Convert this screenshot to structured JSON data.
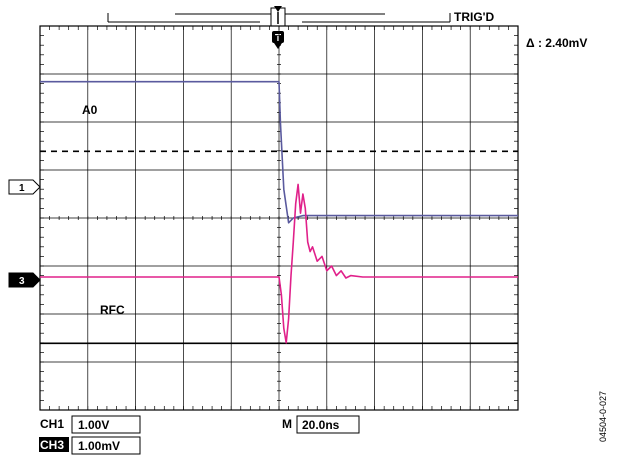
{
  "header": {
    "trigger_status": "TRIG'D",
    "trigger_marker": "T",
    "delta_label": "Δ : 2.40mV"
  },
  "channels": {
    "ch1_marker": "1",
    "ch3_marker": "3",
    "ch1_trace_label": "A0",
    "ch3_trace_label": "RFC",
    "ch1_label": "CH1",
    "ch1_scale": "1.00V",
    "ch3_label": "CH3",
    "ch3_scale": "1.00mV",
    "timebase_label": "M",
    "timebase_value": "20.0ns"
  },
  "colors": {
    "ch1_trace": "#5a5a9e",
    "ch3_trace": "#e0208a",
    "grid": "#000000",
    "background": "#ffffff"
  },
  "figure_id": "04504-0-027",
  "chart_data": {
    "type": "line",
    "grid": true,
    "x_divisions": 10,
    "y_divisions": 8,
    "x_unit": "ns",
    "x_per_div": 20.0,
    "series": [
      {
        "name": "A0",
        "x": [
          0,
          100,
          100.6,
          102,
          104,
          106,
          110,
          120,
          150,
          200
        ],
        "y": [
          2.84,
          2.84,
          2.0,
          0.6,
          -0.1,
          0.0,
          0.05,
          0.05,
          0.05,
          0.05
        ]
      },
      {
        "name": "RFC",
        "x": [
          0,
          100,
          101,
          102,
          103,
          104,
          105,
          106,
          107,
          108,
          109,
          110,
          111,
          112,
          113,
          114,
          116,
          118,
          120,
          122,
          124,
          126,
          128,
          130,
          135,
          140,
          150,
          200
        ],
        "y": [
          -1.23,
          -1.23,
          -1.6,
          -2.3,
          -2.6,
          -2.1,
          -1.2,
          -0.5,
          0.3,
          0.7,
          0.1,
          0.5,
          0.2,
          -0.5,
          -0.7,
          -0.6,
          -0.9,
          -0.8,
          -1.1,
          -1.0,
          -1.2,
          -1.1,
          -1.25,
          -1.2,
          -1.23,
          -1.23,
          -1.23,
          -1.23
        ]
      }
    ],
    "cursors": [
      1.39,
      -2.61
    ]
  }
}
